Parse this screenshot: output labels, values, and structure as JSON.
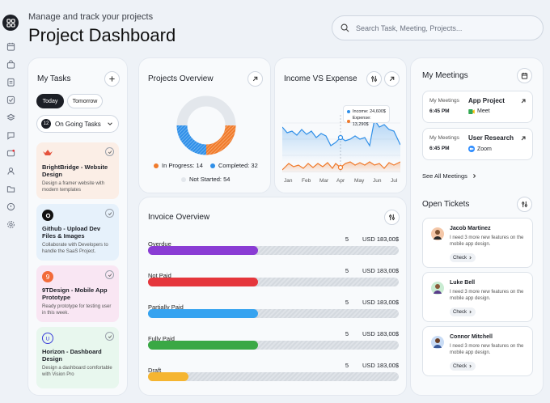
{
  "header": {
    "subtitle": "Manage and track your projects",
    "title": "Project Dashboard",
    "search_placeholder": "Search Task, Meeting, Projects..."
  },
  "sidebar": {
    "icons": [
      "grid-icon",
      "calendar-icon",
      "bag-icon",
      "clipboard-icon",
      "check-square-icon",
      "layers-icon",
      "chat-icon",
      "alert-mail-icon",
      "users-icon",
      "folder-icon",
      "help-icon",
      "settings-icon"
    ]
  },
  "tasks": {
    "title": "My Tasks",
    "tab_today": "Today",
    "tab_tomorrow": "Tomorrow",
    "filter_count": "12",
    "filter_label": "On Going Tasks",
    "items": [
      {
        "title": "BrightBridge - Website Design",
        "desc": "Design a framer website with modern templates",
        "bg": "#fbeee6",
        "icon_color": "#e5533d"
      },
      {
        "title": "Github - Upload Dev Files & Images",
        "desc": "Collaborate with Developers to handle the SaaS Project.",
        "bg": "#e6f1fb",
        "icon_color": "#111111"
      },
      {
        "title": "9TDesign - Mobile App Prototype",
        "desc": "Ready prototype for testing user in this week.",
        "bg": "#f9e6f3",
        "icon_color": "#f26b3a"
      },
      {
        "title": "Horizon - Dashboard Design",
        "desc": "Design a dashboard comfortable with Vision Pro",
        "bg": "#e8f7ee",
        "icon_color": "#3b3fd9"
      }
    ]
  },
  "projects": {
    "title": "Projects Overview",
    "legend": [
      {
        "label": "In Progress: 14",
        "color": "#f07a2b",
        "value": 14
      },
      {
        "label": "Completed: 32",
        "color": "#2f8fe8",
        "value": 32
      },
      {
        "label": "Not Started: 54",
        "color": "#e3e7ec",
        "value": 54
      }
    ]
  },
  "income": {
    "title": "Income VS Expense",
    "tooltip_income": "Income: 24,600$",
    "tooltip_expense": "Expense: 13,290$",
    "months": [
      "Jan",
      "Feb",
      "Mar",
      "Apr",
      "May",
      "Jun",
      "Jul"
    ],
    "income_color": "#2f8fe8",
    "expense_color": "#f07a2b"
  },
  "invoice": {
    "title": "Invoice Overview",
    "rows": [
      {
        "label": "Overdue",
        "count": "5",
        "amount": "USD 183,00$",
        "color": "#8a3cd4",
        "fill": 0.44
      },
      {
        "label": "Not Paid",
        "count": "5",
        "amount": "USD 183,00$",
        "color": "#e5363c",
        "fill": 0.44
      },
      {
        "label": "Partially Paid",
        "count": "5",
        "amount": "USD 183,00$",
        "color": "#36a3f0",
        "fill": 0.44
      },
      {
        "label": "Fully Paid",
        "count": "5",
        "amount": "USD 183,00$",
        "color": "#3aa845",
        "fill": 0.44
      },
      {
        "label": "Draft",
        "count": "5",
        "amount": "USD 183,00$",
        "color": "#f5b531",
        "fill": 0.16
      }
    ]
  },
  "meetings": {
    "title": "My Meetings",
    "items": [
      {
        "label": "My Meetings",
        "time": "6:45 PM",
        "name": "App Project",
        "app": "Meet"
      },
      {
        "label": "My Meetings",
        "time": "6:45 PM",
        "name": "User Research",
        "app": "Zoom"
      }
    ],
    "see_all": "See All Meetings"
  },
  "tickets": {
    "title": "Open Tickets",
    "items": [
      {
        "name": "Jacob Martinez",
        "msg": "I need 3 more new features on the mobile app design.",
        "btn": "Check",
        "avatar": "#f4c7a8"
      },
      {
        "name": "Luke Bell",
        "msg": "I need 3 more new features on the mobile app design.",
        "btn": "Check",
        "avatar": "#c9ecd2"
      },
      {
        "name": "Connor Mitchell",
        "msg": "I need 3 more new features on the mobile app design.",
        "btn": "Check",
        "avatar": "#c9dcf5"
      }
    ]
  }
}
